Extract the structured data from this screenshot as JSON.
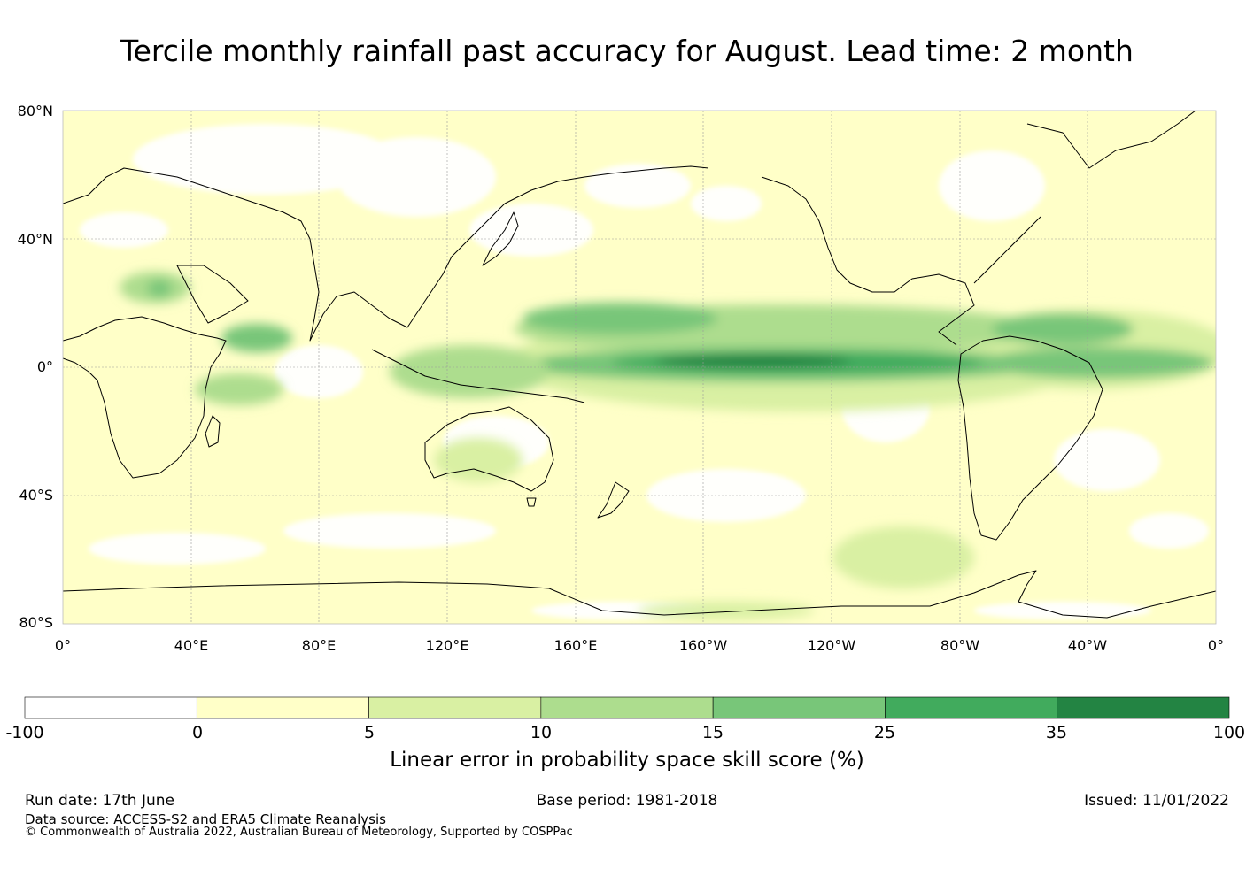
{
  "title": "Tercile monthly rainfall past accuracy for August. Lead time: 2 month",
  "map": {
    "lat_labels": [
      "80°N",
      "40°N",
      "0°",
      "40°S",
      "80°S"
    ],
    "lon_labels": [
      "0°",
      "40°E",
      "80°E",
      "120°E",
      "160°E",
      "160°W",
      "120°W",
      "80°W",
      "40°W",
      "0°"
    ],
    "colors": {
      "base": "#ffffc8",
      "gridline": "#999999",
      "coast": "#000000"
    }
  },
  "colorbar": {
    "ticks": [
      "-100",
      "0",
      "5",
      "10",
      "15",
      "25",
      "35",
      "100"
    ],
    "bins": [
      {
        "from": -100,
        "to": 0,
        "color": "#ffffff"
      },
      {
        "from": 0,
        "to": 5,
        "color": "#ffffc8"
      },
      {
        "from": 5,
        "to": 10,
        "color": "#d9f0a3"
      },
      {
        "from": 10,
        "to": 15,
        "color": "#addd8e"
      },
      {
        "from": 15,
        "to": 25,
        "color": "#78c679"
      },
      {
        "from": 25,
        "to": 35,
        "color": "#41ab5d"
      },
      {
        "from": 35,
        "to": 100,
        "color": "#238443"
      }
    ],
    "label": "Linear error in probability space skill score (%)"
  },
  "footer": {
    "run_date": "Run date: 17th June",
    "base_period": "Base period: 1981-2018",
    "issued": "Issued: 11/01/2022",
    "data_source": "Data source: ACCESS-S2 and ERA5 Climate Reanalysis",
    "copyright": "© Commonwealth of Australia 2022, Australian Bureau of Meteorology, Supported by COSPPac"
  }
}
